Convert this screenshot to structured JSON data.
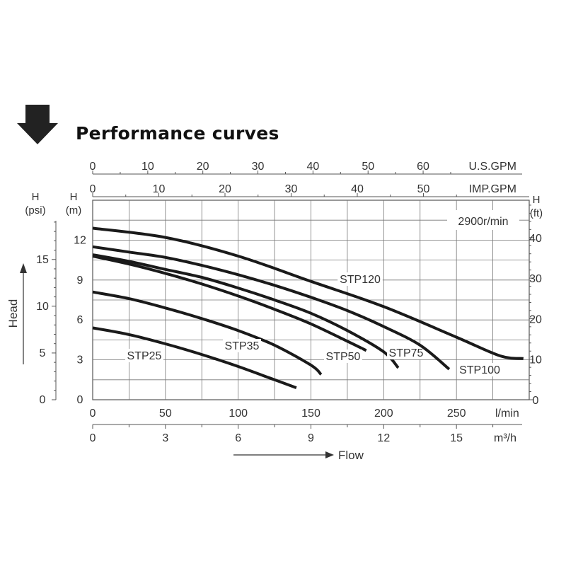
{
  "header": {
    "title": "Performance curves",
    "arrow_icon": "down-arrow-icon"
  },
  "chart_data": {
    "type": "line",
    "speed_note": "2900r/min",
    "x_axis": {
      "label": "l/min",
      "ticks": [
        0,
        50,
        100,
        150,
        200,
        250
      ],
      "range": [
        0,
        300
      ]
    },
    "x_secondary_axes": [
      {
        "unit": "U.S.GPM",
        "ticks": [
          0,
          10,
          20,
          30,
          40,
          50,
          60
        ]
      },
      {
        "unit": "IMP.GPM",
        "ticks": [
          0,
          10,
          20,
          30,
          40,
          50
        ]
      },
      {
        "unit": "m³/h",
        "ticks": [
          0,
          3,
          6,
          9,
          12,
          15
        ]
      }
    ],
    "y_axis": {
      "label": "H\n(m)",
      "ticks": [
        0,
        3,
        6,
        9,
        12
      ],
      "range": [
        0,
        15
      ]
    },
    "y_secondary_axes": [
      {
        "side": "left",
        "label": "H\n(psi)",
        "ticks": [
          0,
          5,
          10,
          15
        ]
      },
      {
        "side": "right",
        "label": "H\n(ft)",
        "ticks": [
          0,
          10,
          20,
          30,
          40
        ]
      }
    ],
    "flow_label": "Flow",
    "head_label": "Head",
    "grid": true,
    "series": [
      {
        "name": "STP25",
        "x": [
          0,
          25,
          50,
          75,
          100,
          125,
          140
        ],
        "y": [
          5.4,
          4.9,
          4.2,
          3.4,
          2.5,
          1.5,
          0.9
        ]
      },
      {
        "name": "STP35",
        "x": [
          0,
          25,
          50,
          75,
          100,
          125,
          150,
          157
        ],
        "y": [
          8.1,
          7.6,
          6.9,
          6.1,
          5.2,
          4.1,
          2.6,
          1.9
        ]
      },
      {
        "name": "STP50",
        "x": [
          0,
          25,
          50,
          75,
          100,
          125,
          150,
          175,
          188
        ],
        "y": [
          10.8,
          10.2,
          9.5,
          8.7,
          7.8,
          6.8,
          5.7,
          4.4,
          3.7
        ]
      },
      {
        "name": "STP75",
        "x": [
          0,
          25,
          50,
          75,
          100,
          125,
          150,
          175,
          200,
          210
        ],
        "y": [
          10.9,
          10.4,
          9.8,
          9.2,
          8.4,
          7.5,
          6.5,
          5.2,
          3.6,
          2.4
        ]
      },
      {
        "name": "STP100",
        "x": [
          0,
          25,
          50,
          75,
          100,
          125,
          150,
          175,
          200,
          225,
          245
        ],
        "y": [
          11.5,
          11.1,
          10.7,
          10.1,
          9.4,
          8.6,
          7.7,
          6.7,
          5.5,
          4.1,
          2.3
        ]
      },
      {
        "name": "STP120",
        "x": [
          0,
          50,
          100,
          150,
          200,
          250,
          280,
          296
        ],
        "y": [
          12.9,
          12.2,
          10.8,
          8.9,
          7.0,
          4.7,
          3.3,
          3.1
        ]
      }
    ]
  }
}
